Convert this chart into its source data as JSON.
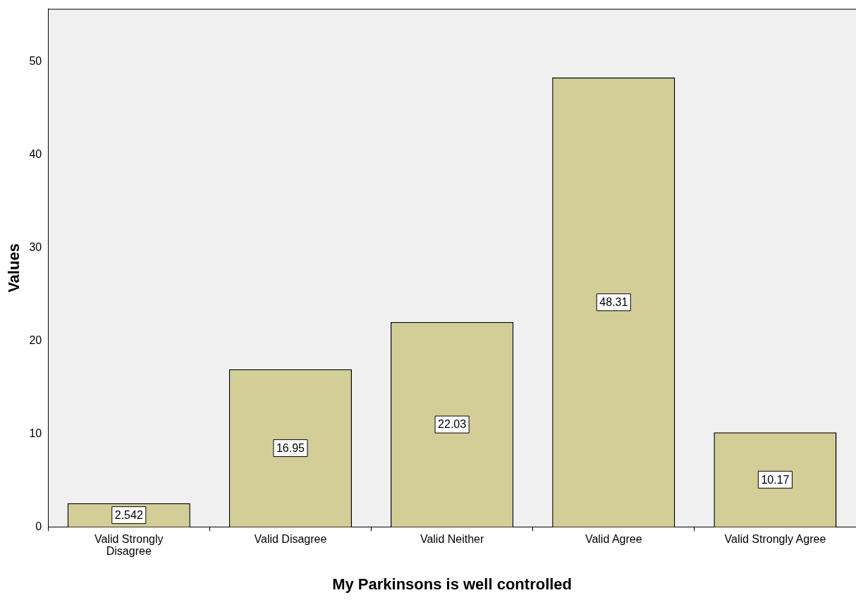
{
  "chart_data": {
    "type": "bar",
    "xlabel": "My Parkinsons is well controlled",
    "ylabel": "Values",
    "categories": [
      "Valid Strongly Disagree",
      "Valid Disagree",
      "Valid Neither",
      "Valid Agree",
      "Valid Strongly Agree"
    ],
    "values": [
      2.542,
      16.95,
      22.03,
      48.31,
      10.17
    ],
    "color": "#d3ce97",
    "ylim": [
      0,
      55.7
    ],
    "yticks": [
      0,
      10,
      20,
      30,
      40,
      50
    ],
    "data_labels": true,
    "grid": false,
    "legend": false
  }
}
